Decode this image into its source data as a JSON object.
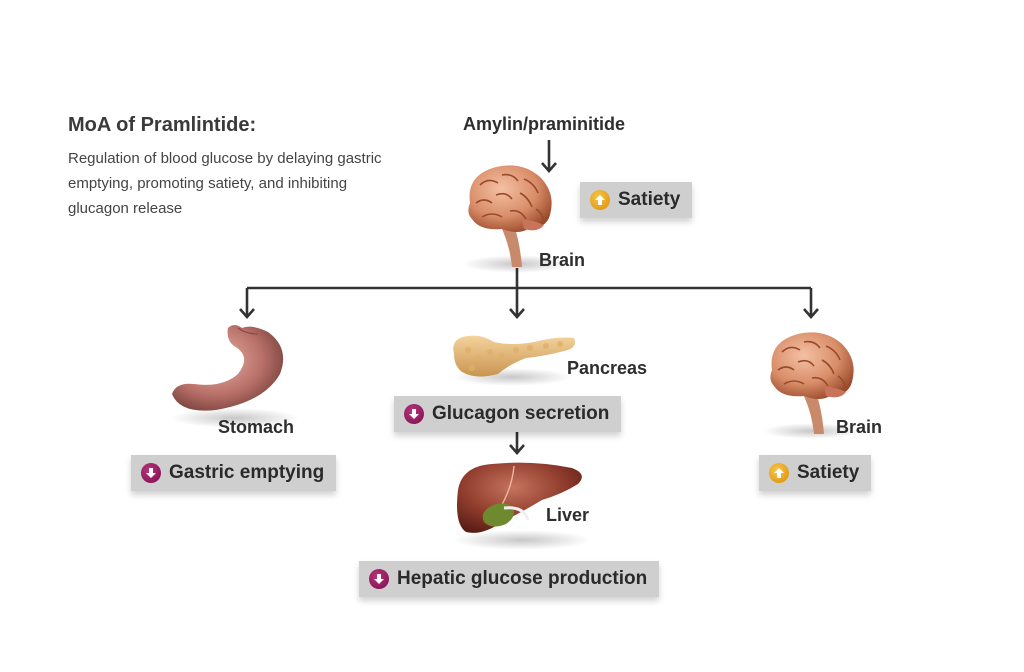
{
  "header": {
    "title": "MoA of Pramlintide:",
    "description": "Regulation of blood glucose by delaying gastric emptying, promoting satiety, and inhibiting glucagon release"
  },
  "top": {
    "input_label": "Amylin/praminitide",
    "organ_label": "Brain",
    "effect": {
      "label": "Satiety",
      "direction": "up"
    }
  },
  "branches": {
    "stomach": {
      "organ_label": "Stomach",
      "effect": {
        "label": "Gastric emptying",
        "direction": "down"
      }
    },
    "pancreas": {
      "organ_label": "Pancreas",
      "effect": {
        "label": "Glucagon secretion",
        "direction": "down"
      }
    },
    "liver": {
      "organ_label": "Liver",
      "effect": {
        "label": "Hepatic glucose production",
        "direction": "down"
      }
    },
    "brain": {
      "organ_label": "Brain",
      "effect": {
        "label": "Satiety",
        "direction": "up"
      }
    }
  },
  "colors": {
    "increase_badge": "#e9a51c",
    "decrease_badge": "#8e1a5d",
    "effect_box": "#cfcfcf",
    "connector": "#333333"
  },
  "icons": {
    "increase": "arrow-up-icon",
    "decrease": "arrow-down-icon",
    "organs": [
      "brain-icon",
      "stomach-icon",
      "pancreas-icon",
      "liver-icon"
    ]
  }
}
